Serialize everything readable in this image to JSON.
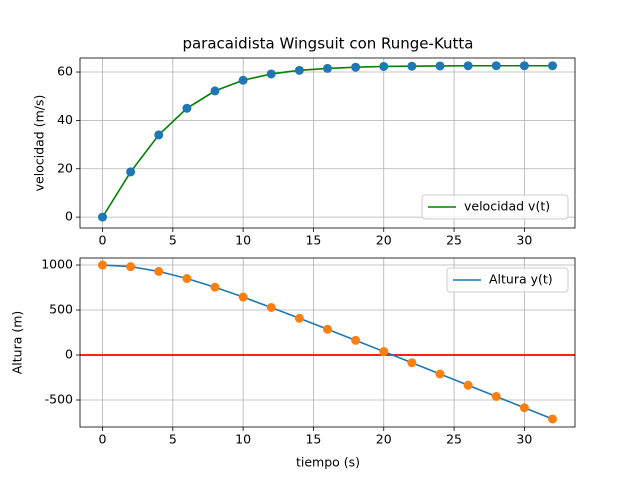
{
  "chart_data": [
    {
      "type": "line",
      "title": "paracaidista Wingsuit con Runge-Kutta",
      "ylabel": "velocidad (m/s)",
      "x": [
        0,
        2,
        4,
        6,
        8,
        10,
        12,
        14,
        16,
        18,
        20,
        22,
        24,
        26,
        28,
        30,
        32
      ],
      "series": [
        {
          "name": "velocidad v(t)",
          "color": "#008000",
          "marker_color": "#1f77b4",
          "values": [
            0,
            18.7,
            34.0,
            45.0,
            52.2,
            56.6,
            59.2,
            60.7,
            61.5,
            62.0,
            62.3,
            62.4,
            62.5,
            62.6,
            62.6,
            62.6,
            62.6
          ]
        }
      ],
      "xlim": [
        -1.6,
        33.6
      ],
      "xticks": [
        0,
        5,
        10,
        15,
        20,
        25,
        30
      ],
      "ylim": [
        -4.5,
        65.8
      ],
      "yticks": [
        0,
        20,
        40,
        60
      ],
      "grid": true,
      "legend": "lower right"
    },
    {
      "type": "line",
      "xlabel": "tiempo (s)",
      "ylabel": "Altura (m)",
      "x": [
        0,
        2,
        4,
        6,
        8,
        10,
        12,
        14,
        16,
        18,
        20,
        22,
        24,
        26,
        28,
        30,
        32
      ],
      "series": [
        {
          "name": "Altura y(t)",
          "color": "#1f77b4",
          "marker_color": "#ff7f0e",
          "values": [
            1000,
            982,
            929,
            850,
            753,
            644,
            528,
            408,
            286,
            163,
            39,
            -86,
            -211,
            -336,
            -461,
            -586,
            -711
          ]
        }
      ],
      "hline": {
        "value": 0,
        "color": "#ff0000"
      },
      "xlim": [
        -1.6,
        33.6
      ],
      "xticks": [
        0,
        5,
        10,
        15,
        20,
        25,
        30
      ],
      "ylim": [
        -800,
        1078
      ],
      "yticks": [
        -500,
        0,
        500,
        1000
      ],
      "grid": true,
      "legend": "upper right"
    }
  ]
}
